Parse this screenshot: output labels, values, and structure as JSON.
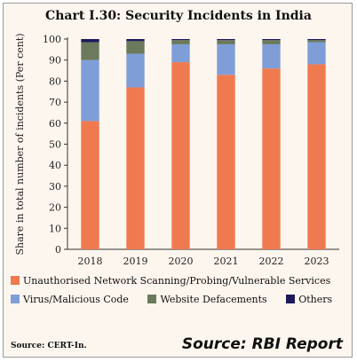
{
  "title": "Chart I.30: Security Incidents in India",
  "source_note": "Source: CERT-In.",
  "watermark": "Source: RBI Report",
  "chart_data": {
    "type": "bar",
    "stacked": true,
    "title": "Chart I.30: Security Incidents in India",
    "xlabel": "",
    "ylabel": "Share in total number of incidents (Per cent)",
    "ylim": [
      0,
      100
    ],
    "yticks": [
      0,
      10,
      20,
      30,
      40,
      50,
      60,
      70,
      80,
      90,
      100
    ],
    "categories": [
      "2018",
      "2019",
      "2020",
      "2021",
      "2022",
      "2023"
    ],
    "series": [
      {
        "name": "Unauthorised Network Scanning/Probing/Vulnerable Services",
        "color": "#f07a50",
        "values": [
          61,
          77,
          89,
          83,
          86,
          88
        ]
      },
      {
        "name": "Virus/Malicious Code",
        "color": "#7f9ed8",
        "values": [
          29,
          16,
          8.5,
          14.5,
          11.5,
          10.5
        ]
      },
      {
        "name": "Website Defacements",
        "color": "#6b7a5c",
        "values": [
          8.5,
          6,
          2,
          2,
          2,
          1
        ]
      },
      {
        "name": "Others",
        "color": "#1d1a5c",
        "values": [
          1.5,
          1,
          0.5,
          0.5,
          0.5,
          0.5
        ]
      }
    ],
    "legend_position": "bottom",
    "grid": false
  }
}
